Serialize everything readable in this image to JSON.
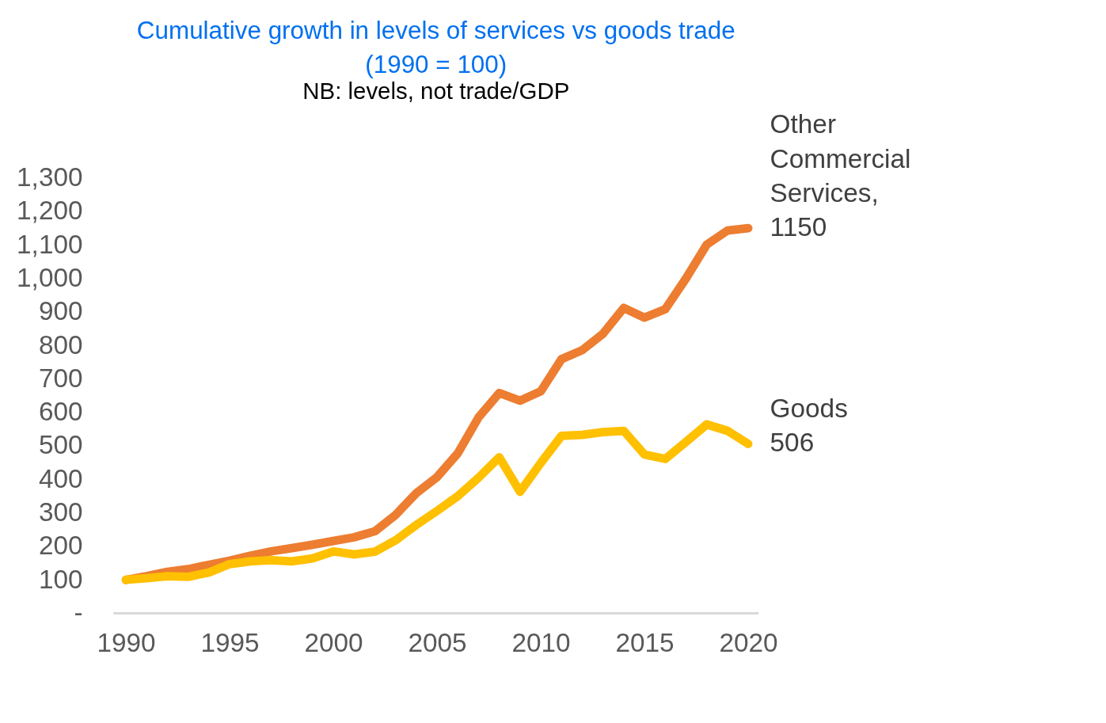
{
  "chart_data": {
    "type": "line",
    "title": [
      "Cumulative growth in levels of services vs goods trade",
      "(1990 = 100)"
    ],
    "subtitle": "NB: levels, not trade/GDP",
    "x": [
      1990,
      1991,
      1992,
      1993,
      1994,
      1995,
      1996,
      1997,
      1998,
      1999,
      2000,
      2001,
      2002,
      2003,
      2004,
      2005,
      2006,
      2007,
      2008,
      2009,
      2010,
      2011,
      2012,
      2013,
      2014,
      2015,
      2016,
      2017,
      2018,
      2019,
      2020
    ],
    "series": [
      {
        "name": "Other Commercial Services,",
        "color": "#ed7d31",
        "values": [
          100,
          111,
          124,
          132,
          145,
          157,
          172,
          185,
          195,
          205,
          216,
          227,
          245,
          294,
          359,
          407,
          478,
          585,
          658,
          635,
          663,
          759,
          786,
          835,
          912,
          883,
          908,
          1000,
          1101,
          1143,
          1150
        ],
        "value_labels": [
          null,
          null,
          null,
          null,
          null,
          null,
          null,
          null,
          null,
          null,
          null,
          null,
          null,
          null,
          null,
          null,
          null,
          null,
          null,
          null,
          null,
          null,
          null,
          null,
          null,
          null,
          null,
          null,
          null,
          null,
          "1150"
        ]
      },
      {
        "name": "Goods",
        "color": "#ffc000",
        "values": [
          100,
          105,
          111,
          109,
          122,
          147,
          155,
          159,
          155,
          164,
          185,
          176,
          184,
          218,
          264,
          306,
          350,
          405,
          466,
          363,
          449,
          530,
          533,
          541,
          545,
          474,
          461,
          512,
          564,
          545,
          506
        ],
        "value_labels": [
          null,
          null,
          null,
          null,
          null,
          null,
          null,
          null,
          null,
          null,
          null,
          null,
          null,
          null,
          null,
          null,
          null,
          null,
          null,
          null,
          null,
          null,
          null,
          null,
          null,
          null,
          null,
          null,
          null,
          null,
          "506"
        ]
      }
    ],
    "xlim": [
      1989.4,
      2020.5
    ],
    "xticks": [
      1990,
      1995,
      2000,
      2005,
      2010,
      2015,
      2020
    ],
    "ylim": [
      0,
      1300
    ],
    "yticks": [
      {
        "value": 0,
        "label": "-"
      },
      100,
      200,
      300,
      400,
      500,
      600,
      700,
      800,
      900,
      {
        "value": 1000,
        "label": "1,000"
      },
      {
        "value": 1100,
        "label": "1,100"
      },
      {
        "value": 1200,
        "label": "1,200"
      },
      {
        "value": 1300,
        "label": "1,300"
      }
    ],
    "grid": false,
    "line_style": "solid",
    "marker": "none"
  }
}
